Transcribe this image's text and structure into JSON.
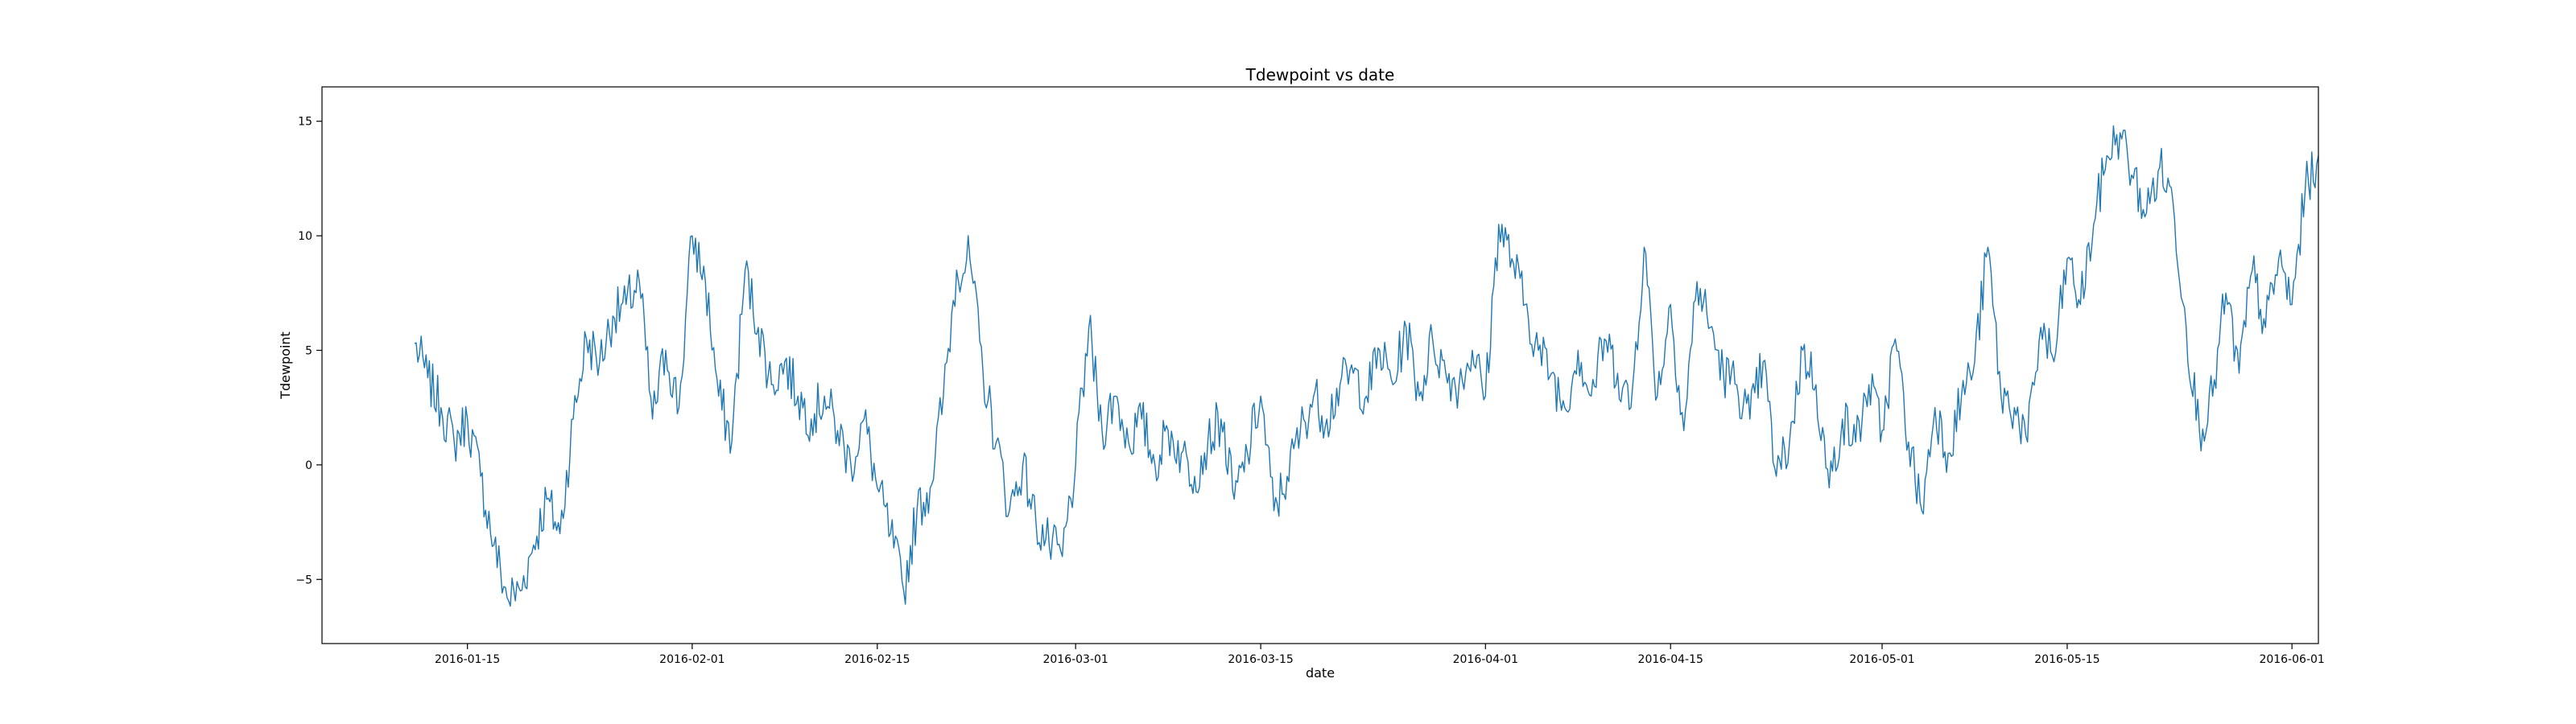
{
  "chart_data": {
    "type": "line",
    "title": "Tdewpoint vs date",
    "xlabel": "date",
    "ylabel": "Tdewpoint",
    "x_axis": "date",
    "xlim": [
      "2016-01-04",
      "2016-06-03"
    ],
    "ylim": [
      -7.8,
      16.5
    ],
    "x_ticks": [
      "2016-01-15",
      "2016-02-01",
      "2016-02-15",
      "2016-03-01",
      "2016-03-15",
      "2016-04-01",
      "2016-04-15",
      "2016-05-01",
      "2016-05-15",
      "2016-06-01"
    ],
    "y_ticks": [
      -5,
      0,
      5,
      10,
      15
    ],
    "grid": false,
    "legend": "none",
    "series": [
      {
        "color": "#1f77b4",
        "points": [
          [
            "2016-01-11",
            5.3
          ],
          [
            "2016-01-12",
            3.8
          ],
          [
            "2016-01-13",
            2.5
          ],
          [
            "2016-01-14",
            1.0
          ],
          [
            "2016-01-15",
            2.0
          ],
          [
            "2016-01-16",
            -0.5
          ],
          [
            "2016-01-17",
            -3.5
          ],
          [
            "2016-01-18",
            -5.8
          ],
          [
            "2016-01-19",
            -5.5
          ],
          [
            "2016-01-20",
            -3.5
          ],
          [
            "2016-01-21",
            -1.5
          ],
          [
            "2016-01-22",
            -3.0
          ],
          [
            "2016-01-23",
            2.0
          ],
          [
            "2016-01-24",
            5.5
          ],
          [
            "2016-01-25",
            4.5
          ],
          [
            "2016-01-26",
            6.5
          ],
          [
            "2016-01-27",
            7.0
          ],
          [
            "2016-01-28",
            8.0
          ],
          [
            "2016-01-29",
            2.0
          ],
          [
            "2016-01-30",
            5.0
          ],
          [
            "2016-01-31",
            2.5
          ],
          [
            "2016-02-01",
            10.0
          ],
          [
            "2016-02-02",
            8.0
          ],
          [
            "2016-02-03",
            3.0
          ],
          [
            "2016-02-04",
            1.0
          ],
          [
            "2016-02-05",
            8.5
          ],
          [
            "2016-02-06",
            6.0
          ],
          [
            "2016-02-07",
            3.5
          ],
          [
            "2016-02-08",
            4.5
          ],
          [
            "2016-02-09",
            3.0
          ],
          [
            "2016-02-10",
            2.0
          ],
          [
            "2016-02-11",
            3.0
          ],
          [
            "2016-02-12",
            1.5
          ],
          [
            "2016-02-13",
            0.0
          ],
          [
            "2016-02-14",
            2.0
          ],
          [
            "2016-02-15",
            -1.0
          ],
          [
            "2016-02-16",
            -3.0
          ],
          [
            "2016-02-17",
            -5.5
          ],
          [
            "2016-02-18",
            -2.0
          ],
          [
            "2016-02-19",
            -1.0
          ],
          [
            "2016-02-20",
            3.0
          ],
          [
            "2016-02-21",
            8.5
          ],
          [
            "2016-02-22",
            9.0
          ],
          [
            "2016-02-23",
            4.0
          ],
          [
            "2016-02-24",
            1.0
          ],
          [
            "2016-02-25",
            -2.0
          ],
          [
            "2016-02-26",
            0.0
          ],
          [
            "2016-02-27",
            -2.5
          ],
          [
            "2016-02-28",
            -3.5
          ],
          [
            "2016-02-29",
            -4.0
          ],
          [
            "2016-03-01",
            0.0
          ],
          [
            "2016-03-02",
            6.0
          ],
          [
            "2016-03-03",
            1.5
          ],
          [
            "2016-03-04",
            3.0
          ],
          [
            "2016-03-05",
            1.0
          ],
          [
            "2016-03-06",
            2.0
          ],
          [
            "2016-03-07",
            0.0
          ],
          [
            "2016-03-08",
            1.5
          ],
          [
            "2016-03-09",
            0.5
          ],
          [
            "2016-03-10",
            -0.5
          ],
          [
            "2016-03-11",
            1.0
          ],
          [
            "2016-03-12",
            2.0
          ],
          [
            "2016-03-13",
            -1.5
          ],
          [
            "2016-03-14",
            0.5
          ],
          [
            "2016-03-15",
            3.0
          ],
          [
            "2016-03-16",
            -2.0
          ],
          [
            "2016-03-17",
            -0.5
          ],
          [
            "2016-03-18",
            1.5
          ],
          [
            "2016-03-19",
            3.0
          ],
          [
            "2016-03-20",
            2.0
          ],
          [
            "2016-03-21",
            3.5
          ],
          [
            "2016-03-22",
            4.0
          ],
          [
            "2016-03-23",
            3.0
          ],
          [
            "2016-03-24",
            5.0
          ],
          [
            "2016-03-25",
            3.5
          ],
          [
            "2016-03-26",
            6.0
          ],
          [
            "2016-03-27",
            3.0
          ],
          [
            "2016-03-28",
            5.5
          ],
          [
            "2016-03-29",
            4.0
          ],
          [
            "2016-03-30",
            3.5
          ],
          [
            "2016-03-31",
            5.0
          ],
          [
            "2016-04-01",
            3.0
          ],
          [
            "2016-04-02",
            10.5
          ],
          [
            "2016-04-03",
            9.0
          ],
          [
            "2016-04-04",
            7.0
          ],
          [
            "2016-04-05",
            5.0
          ],
          [
            "2016-04-06",
            4.0
          ],
          [
            "2016-04-07",
            2.5
          ],
          [
            "2016-04-08",
            5.0
          ],
          [
            "2016-04-09",
            3.0
          ],
          [
            "2016-04-10",
            5.5
          ],
          [
            "2016-04-11",
            4.0
          ],
          [
            "2016-04-12",
            2.5
          ],
          [
            "2016-04-13",
            9.5
          ],
          [
            "2016-04-14",
            3.0
          ],
          [
            "2016-04-15",
            7.0
          ],
          [
            "2016-04-16",
            1.5
          ],
          [
            "2016-04-17",
            8.0
          ],
          [
            "2016-04-18",
            6.0
          ],
          [
            "2016-04-19",
            4.0
          ],
          [
            "2016-04-20",
            3.5
          ],
          [
            "2016-04-21",
            2.0
          ],
          [
            "2016-04-22",
            4.5
          ],
          [
            "2016-04-23",
            -0.5
          ],
          [
            "2016-04-24",
            1.0
          ],
          [
            "2016-04-25",
            5.0
          ],
          [
            "2016-04-26",
            3.5
          ],
          [
            "2016-04-27",
            -1.0
          ],
          [
            "2016-04-28",
            2.0
          ],
          [
            "2016-04-29",
            1.0
          ],
          [
            "2016-04-30",
            3.5
          ],
          [
            "2016-05-01",
            1.5
          ],
          [
            "2016-05-02",
            5.5
          ],
          [
            "2016-05-03",
            1.0
          ],
          [
            "2016-05-04",
            -2.0
          ],
          [
            "2016-05-05",
            2.5
          ],
          [
            "2016-05-06",
            0.5
          ],
          [
            "2016-05-07",
            3.0
          ],
          [
            "2016-05-08",
            4.5
          ],
          [
            "2016-05-09",
            9.5
          ],
          [
            "2016-05-10",
            3.0
          ],
          [
            "2016-05-11",
            2.5
          ],
          [
            "2016-05-12",
            1.0
          ],
          [
            "2016-05-13",
            6.0
          ],
          [
            "2016-05-14",
            4.5
          ],
          [
            "2016-05-15",
            9.0
          ],
          [
            "2016-05-16",
            7.0
          ],
          [
            "2016-05-17",
            10.5
          ],
          [
            "2016-05-18",
            13.5
          ],
          [
            "2016-05-19",
            14.5
          ],
          [
            "2016-05-20",
            12.5
          ],
          [
            "2016-05-21",
            11.0
          ],
          [
            "2016-05-22",
            13.0
          ],
          [
            "2016-05-23",
            11.5
          ],
          [
            "2016-05-24",
            6.0
          ],
          [
            "2016-05-25",
            1.5
          ],
          [
            "2016-05-26",
            3.0
          ],
          [
            "2016-05-27",
            7.5
          ],
          [
            "2016-05-28",
            4.0
          ],
          [
            "2016-05-29",
            8.5
          ],
          [
            "2016-05-30",
            6.0
          ],
          [
            "2016-05-31",
            9.0
          ],
          [
            "2016-06-01",
            7.0
          ],
          [
            "2016-06-02",
            12.0
          ],
          [
            "2016-06-03",
            13.5
          ]
        ]
      }
    ]
  }
}
